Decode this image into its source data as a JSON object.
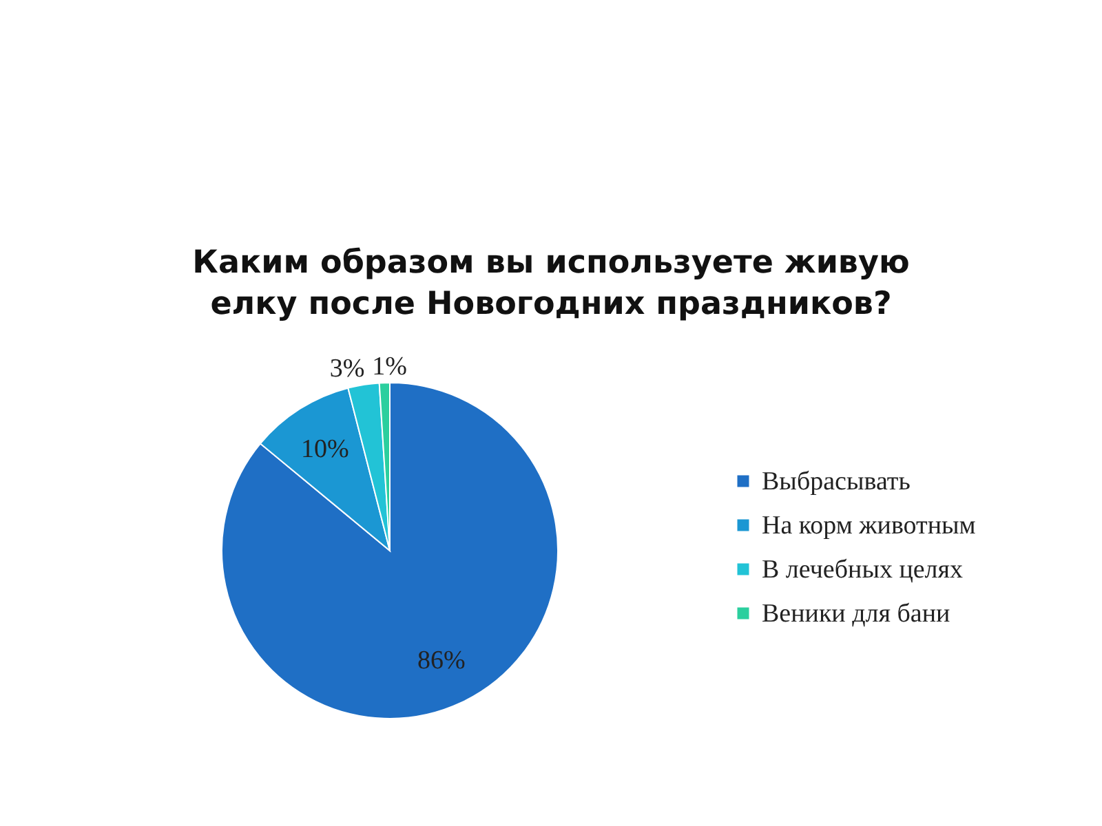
{
  "chart_data": {
    "type": "pie",
    "title": "Каким образом вы используете живую\nелку после Новогодних праздников?",
    "categories": [
      "Выбрасывать",
      "На корм животным",
      "В лечебных целях",
      "Веники для бани"
    ],
    "values": [
      86,
      10,
      3,
      1
    ],
    "colors": [
      "#1f6fc5",
      "#1b97d3",
      "#22c3d6",
      "#2bcf9e"
    ],
    "value_labels": [
      "86%",
      "10%",
      "3%",
      "1%"
    ],
    "legend": "right"
  }
}
